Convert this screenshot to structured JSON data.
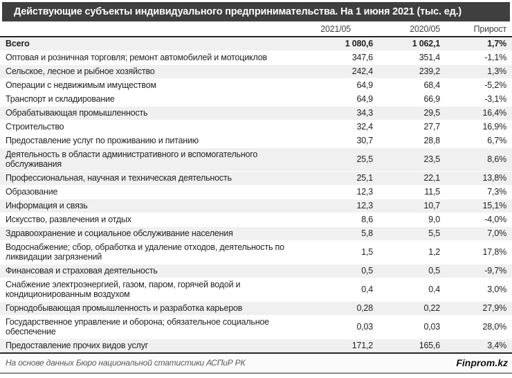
{
  "title": "Действующие субъекты индивидуального предпринимательства. На 1 июня 2021 (тыс. ед.)",
  "footer": {
    "source": "На основе данных Бюро национальной статистики АСПиР РК",
    "brand": "Finprom.kz"
  },
  "colors": {
    "title_bar_bg": "#3f3f3f",
    "title_text": "#ffffff",
    "row_shade": "#f0f0f0",
    "border_dark": "#262626",
    "footer_text": "#595959",
    "bottom_line": "#8c8c8c"
  },
  "chart_data": {
    "type": "table",
    "title": "Действующие субъекты индивидуального предпринимательства. На 1 июня 2021 (тыс. ед.)",
    "columns": [
      "2021/05",
      "2020/05",
      "Прирост"
    ],
    "rows": [
      {
        "label": "Всего",
        "values": [
          "1 080,6",
          "1 062,1",
          "1,7%"
        ],
        "bold": true,
        "shaded": true
      },
      {
        "label": "Оптовая и розничная торговля; ремонт автомобилей и мотоциклов",
        "values": [
          "347,6",
          "351,4",
          "-1,1%"
        ],
        "bold": false,
        "shaded": false
      },
      {
        "label": "Сельское, лесное и рыбное хозяйство",
        "values": [
          "242,4",
          "239,2",
          "1,3%"
        ],
        "bold": false,
        "shaded": true
      },
      {
        "label": "Операции с недвижимым имуществом",
        "values": [
          "64,9",
          "68,4",
          "-5,2%"
        ],
        "bold": false,
        "shaded": false
      },
      {
        "label": "Транспорт и складирование",
        "values": [
          "64,9",
          "66,9",
          "-3,1%"
        ],
        "bold": false,
        "shaded": false
      },
      {
        "label": "Обрабатывающая промышленность",
        "values": [
          "34,3",
          "29,5",
          "16,4%"
        ],
        "bold": false,
        "shaded": true
      },
      {
        "label": "Строительство",
        "values": [
          "32,4",
          "27,7",
          "16,9%"
        ],
        "bold": false,
        "shaded": false
      },
      {
        "label": "Предоставление услуг по проживанию и питанию",
        "values": [
          "30,7",
          "28,8",
          "6,7%"
        ],
        "bold": false,
        "shaded": false
      },
      {
        "label": "Деятельность в области административного и вспомогательного обслуживания",
        "values": [
          "25,5",
          "23,5",
          "8,6%"
        ],
        "bold": false,
        "shaded": true
      },
      {
        "label": "Профессиональная, научная и техническая деятельность",
        "values": [
          "25,1",
          "22,1",
          "13,8%"
        ],
        "bold": false,
        "shaded": true
      },
      {
        "label": "Образование",
        "values": [
          "12,3",
          "11,5",
          "7,3%"
        ],
        "bold": false,
        "shaded": false
      },
      {
        "label": "Информация и связь",
        "values": [
          "12,3",
          "10,7",
          "15,1%"
        ],
        "bold": false,
        "shaded": true
      },
      {
        "label": "Искусство, развлечения и отдых",
        "values": [
          "8,6",
          "9,0",
          "-4,0%"
        ],
        "bold": false,
        "shaded": false
      },
      {
        "label": "Здравоохранение и социальное обслуживание населения",
        "values": [
          "5,8",
          "5,5",
          "7,0%"
        ],
        "bold": false,
        "shaded": true
      },
      {
        "label": "Водоснабжение; сбор, обработка и удаление отходов, деятельность по ликвидации загрязнений",
        "values": [
          "1,5",
          "1,2",
          "17,8%"
        ],
        "bold": false,
        "shaded": false
      },
      {
        "label": "Финансовая и страховая деятельность",
        "values": [
          "0,5",
          "0,5",
          "-9,7%"
        ],
        "bold": false,
        "shaded": true
      },
      {
        "label": "Снабжение электроэнергией, газом, паром, горячей водой и кондиционированным воздухом",
        "values": [
          "0,4",
          "0,4",
          "3,0%"
        ],
        "bold": false,
        "shaded": false
      },
      {
        "label": "Горнодобывающая промышленность и разработка карьеров",
        "values": [
          "0,28",
          "0,22",
          "27,9%"
        ],
        "bold": false,
        "shaded": true
      },
      {
        "label": "Государственное управление и оборона; обязательное социальное обеспечение",
        "values": [
          "0,03",
          "0,03",
          "28,0%"
        ],
        "bold": false,
        "shaded": false
      },
      {
        "label": "Предоставление прочих видов услуг",
        "values": [
          "171,2",
          "165,6",
          "3,4%"
        ],
        "bold": false,
        "shaded": true
      }
    ]
  }
}
